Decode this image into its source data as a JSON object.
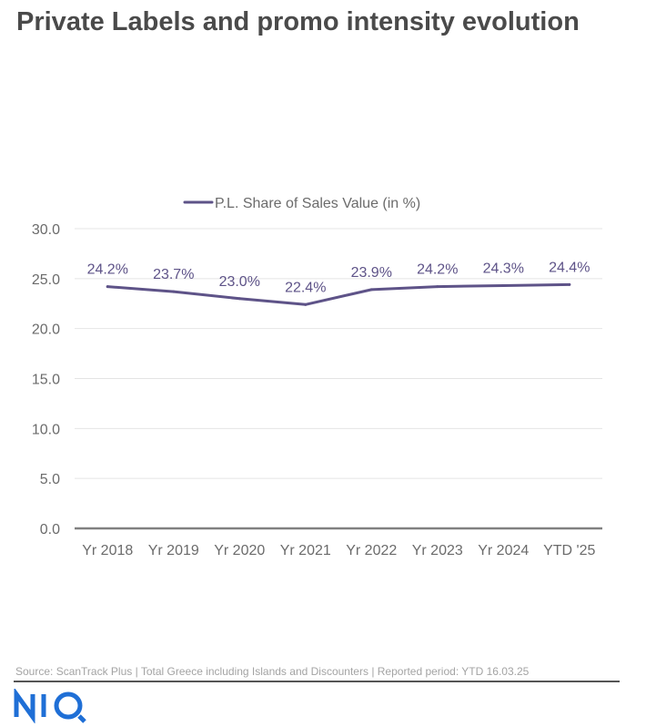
{
  "header": {
    "title": "Private Labels and promo intensity evolution"
  },
  "chart_data": {
    "type": "line",
    "title": "Private Labels and promo intensity evolution",
    "categories": [
      "Yr 2018",
      "Yr 2019",
      "Yr 2020",
      "Yr 2021",
      "Yr 2022",
      "Yr 2023",
      "Yr 2024",
      "YTD '25"
    ],
    "series": [
      {
        "name": "P.L. Share of Sales Value (in %)",
        "values": [
          24.2,
          23.7,
          23.0,
          22.4,
          23.9,
          24.2,
          24.3,
          24.4
        ],
        "labels": [
          "24.2%",
          "23.7%",
          "23.0%",
          "22.4%",
          "23.9%",
          "24.2%",
          "24.3%",
          "24.4%"
        ],
        "color": "#5e5388"
      }
    ],
    "ylim": [
      0,
      30
    ],
    "yticks": [
      0,
      5,
      10,
      15,
      20,
      25,
      30
    ],
    "ytick_labels": [
      "0.0",
      "5.0",
      "10.0",
      "15.0",
      "20.0",
      "25.0",
      "30.0"
    ],
    "xlabel": "",
    "ylabel": "",
    "grid": true,
    "legend": "top-center",
    "colors": {
      "axis_text": "#6b6b6b",
      "grid": "#e4e4e4",
      "baseline": "#808080"
    }
  },
  "footer": {
    "source": "Source: ScanTrack Plus | Total Greece including Islands and Discounters |  Reported period: YTD 16.03.25",
    "logo_text": "NIQ",
    "logo_color": "#1f6fd6"
  }
}
